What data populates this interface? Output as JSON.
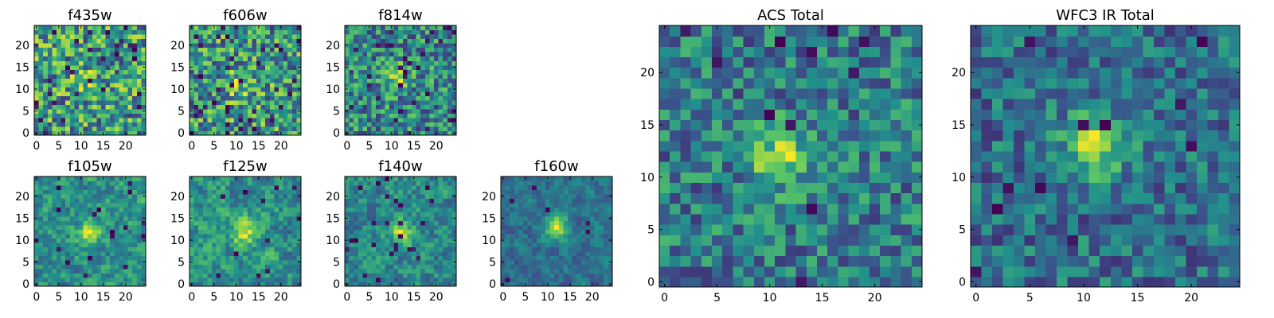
{
  "figure": {
    "colormap": [
      "#440154",
      "#3b528b",
      "#21918c",
      "#5ec962",
      "#fde725"
    ]
  },
  "chart_data": [
    {
      "type": "heatmap",
      "title": "f435w",
      "size": 25,
      "ylim": [
        0,
        24
      ],
      "xlim": [
        0,
        24
      ],
      "xticks": [
        "0",
        "5",
        "10",
        "15",
        "20"
      ],
      "yticks": [
        "0",
        "5",
        "10",
        "15",
        "20"
      ],
      "peak": [
        11,
        12
      ],
      "peak_strength": 0.15,
      "noise": 0.95,
      "seed": 11,
      "hole_rate": 0.05,
      "smooth": 0
    },
    {
      "type": "heatmap",
      "title": "f606w",
      "size": 25,
      "ylim": [
        0,
        24
      ],
      "xlim": [
        0,
        24
      ],
      "xticks": [
        "0",
        "5",
        "10",
        "15",
        "20"
      ],
      "yticks": [
        "0",
        "5",
        "10",
        "15",
        "20"
      ],
      "peak": [
        11,
        11
      ],
      "peak_strength": 0.25,
      "noise": 0.9,
      "seed": 23,
      "hole_rate": 0.05,
      "smooth": 0
    },
    {
      "type": "heatmap",
      "title": "f814w",
      "size": 25,
      "ylim": [
        0,
        24
      ],
      "xlim": [
        0,
        24
      ],
      "xticks": [
        "0",
        "5",
        "10",
        "15",
        "20"
      ],
      "yticks": [
        "0",
        "5",
        "10",
        "15",
        "20"
      ],
      "peak": [
        11,
        13
      ],
      "peak_strength": 0.35,
      "noise": 0.85,
      "seed": 37,
      "hole_rate": 0.05,
      "smooth": 0
    },
    {
      "type": "heatmap",
      "title": "f105w",
      "size": 25,
      "ylim": [
        0,
        24
      ],
      "xlim": [
        0,
        24
      ],
      "xticks": [
        "0",
        "5",
        "10",
        "15",
        "20"
      ],
      "yticks": [
        "0",
        "5",
        "10",
        "15",
        "20"
      ],
      "peak": [
        12,
        12
      ],
      "peak_strength": 0.35,
      "noise": 0.7,
      "seed": 41,
      "hole_rate": 0.02,
      "smooth": 1
    },
    {
      "type": "heatmap",
      "title": "f125w",
      "size": 25,
      "ylim": [
        0,
        24
      ],
      "xlim": [
        0,
        24
      ],
      "xticks": [
        "0",
        "5",
        "10",
        "15",
        "20"
      ],
      "yticks": [
        "0",
        "5",
        "10",
        "15",
        "20"
      ],
      "peak": [
        12,
        12
      ],
      "peak_strength": 0.35,
      "noise": 0.7,
      "seed": 53,
      "hole_rate": 0.02,
      "smooth": 1
    },
    {
      "type": "heatmap",
      "title": "f140w",
      "size": 25,
      "ylim": [
        0,
        24
      ],
      "xlim": [
        0,
        24
      ],
      "xticks": [
        "0",
        "5",
        "10",
        "15",
        "20"
      ],
      "yticks": [
        "0",
        "5",
        "10",
        "15",
        "20"
      ],
      "peak": [
        12,
        12
      ],
      "peak_strength": 0.35,
      "noise": 0.75,
      "seed": 67,
      "hole_rate": 0.03,
      "smooth": 1
    },
    {
      "type": "heatmap",
      "title": "f160w",
      "size": 25,
      "ylim": [
        0,
        24
      ],
      "xlim": [
        0,
        24
      ],
      "xticks": [
        "0",
        "5",
        "10",
        "15",
        "20"
      ],
      "yticks": [
        "0",
        "5",
        "10",
        "15",
        "20"
      ],
      "peak": [
        12,
        13
      ],
      "peak_strength": 0.55,
      "noise": 0.6,
      "seed": 79,
      "hole_rate": 0.02,
      "smooth": 1
    },
    {
      "type": "heatmap",
      "title": "ACS Total",
      "size": 25,
      "ylim": [
        0,
        24
      ],
      "xlim": [
        0,
        24
      ],
      "xticks": [
        "0",
        "5",
        "10",
        "15",
        "20"
      ],
      "yticks": [
        "0",
        "5",
        "10",
        "15",
        "20"
      ],
      "peak": [
        11,
        12
      ],
      "peak_strength": 0.45,
      "noise": 0.7,
      "seed": 97,
      "hole_rate": 0.02,
      "smooth": 0
    },
    {
      "type": "heatmap",
      "title": "WFC3 IR Total",
      "size": 25,
      "ylim": [
        0,
        24
      ],
      "xlim": [
        0,
        24
      ],
      "xticks": [
        "0",
        "5",
        "10",
        "15",
        "20"
      ],
      "yticks": [
        "0",
        "5",
        "10",
        "15",
        "20"
      ],
      "peak": [
        11,
        13
      ],
      "peak_strength": 0.5,
      "noise": 0.6,
      "seed": 113,
      "hole_rate": 0.02,
      "smooth": 0
    }
  ]
}
